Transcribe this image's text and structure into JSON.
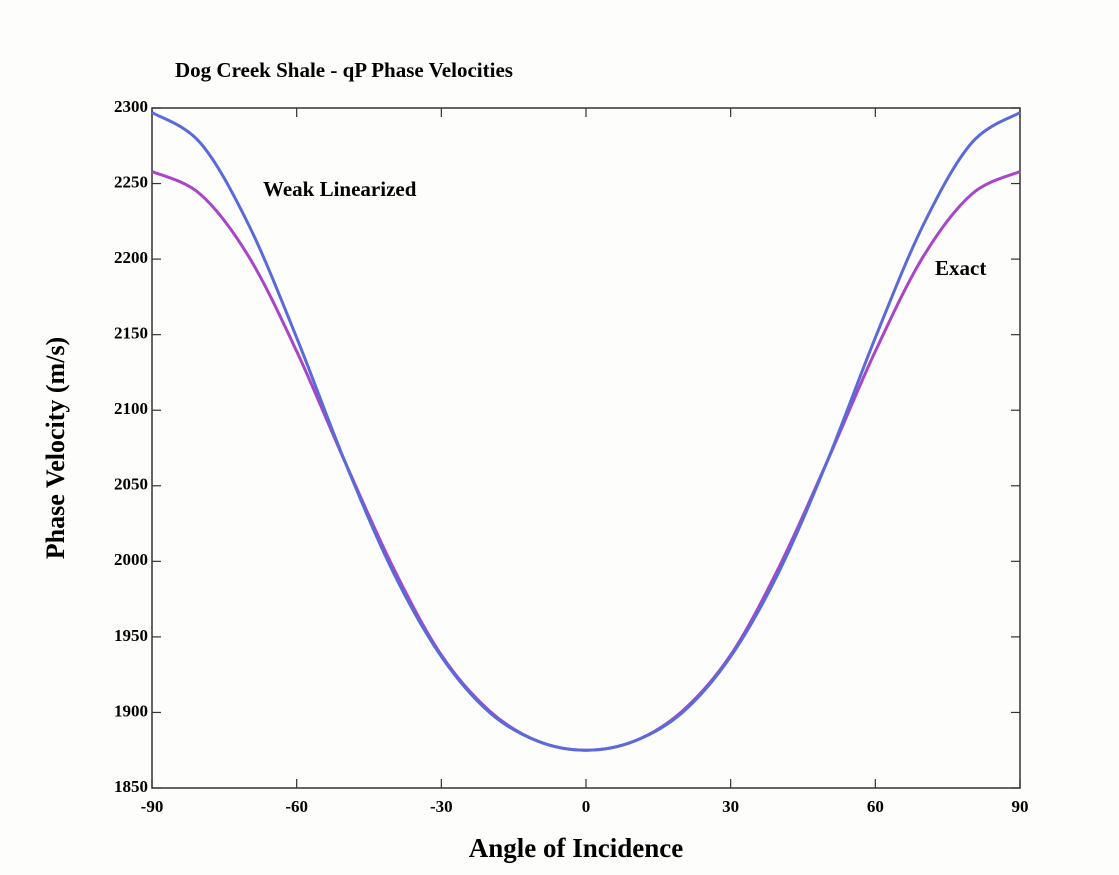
{
  "chart_data": {
    "type": "line",
    "title": "Dog Creek Shale - qP Phase Velocities",
    "x_label": "Angle of Incidence",
    "y_label": "Phase Velocity (m/s)",
    "x": [
      -90,
      -80,
      -70,
      -60,
      -50,
      -40,
      -30,
      -20,
      -10,
      0,
      10,
      20,
      30,
      40,
      50,
      60,
      70,
      80,
      90
    ],
    "series": [
      {
        "name": "Weak Linearized",
        "color": "#5a6ad8",
        "values": [
          2297,
          2277,
          2223,
          2148,
          2066,
          1993,
          1937,
          1900,
          1881,
          1875,
          1881,
          1900,
          1937,
          1993,
          2066,
          2148,
          2223,
          2277,
          2297
        ]
      },
      {
        "name": "Exact",
        "color": "#a845c8",
        "values": [
          2258,
          2243,
          2202,
          2139,
          2066,
          1996,
          1938,
          1901,
          1881,
          1875,
          1881,
          1901,
          1938,
          1996,
          2066,
          2139,
          2202,
          2243,
          2258
        ]
      }
    ],
    "xlim": [
      -90,
      90
    ],
    "xticks": [
      -90,
      -60,
      -30,
      0,
      30,
      60,
      90
    ],
    "ylim": [
      1850,
      2300
    ],
    "yticks": [
      1850,
      1900,
      1950,
      2000,
      2050,
      2100,
      2150,
      2200,
      2250,
      2300
    ],
    "grid": false
  }
}
